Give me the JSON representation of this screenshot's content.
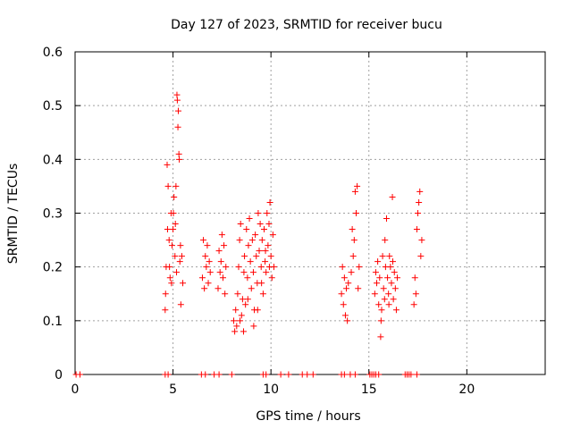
{
  "chart_data": {
    "type": "scatter",
    "title": "Day 127 of 2023, SRMTID for receiver bucu",
    "xlabel": "GPS time / hours",
    "ylabel": "SRMTID / TECUs",
    "xlim": [
      0,
      24
    ],
    "ylim": [
      0,
      0.6
    ],
    "xticks": [
      0,
      5,
      10,
      15,
      20
    ],
    "yticks": [
      0,
      0.1,
      0.2,
      0.3,
      0.4,
      0.5,
      0.6
    ],
    "xtick_labels": [
      "0",
      "5",
      "10",
      "15",
      "20"
    ],
    "ytick_labels": [
      "0",
      "0.1",
      "0.2",
      "0.3",
      "0.4",
      "0.5",
      "0.6"
    ],
    "grid": true,
    "marker": "+",
    "series": [
      {
        "name": "SRMTID",
        "color": "#ff0000",
        "points": [
          [
            0.05,
            0
          ],
          [
            0.25,
            0
          ],
          [
            4.6,
            0
          ],
          [
            4.75,
            0
          ],
          [
            6.45,
            0
          ],
          [
            6.65,
            0
          ],
          [
            7.1,
            0
          ],
          [
            7.35,
            0
          ],
          [
            8.0,
            0
          ],
          [
            9.6,
            0
          ],
          [
            9.75,
            0
          ],
          [
            10.5,
            0
          ],
          [
            10.9,
            0
          ],
          [
            11.6,
            0
          ],
          [
            11.85,
            0
          ],
          [
            12.15,
            0
          ],
          [
            13.6,
            0
          ],
          [
            13.75,
            0
          ],
          [
            14.05,
            0
          ],
          [
            14.3,
            0
          ],
          [
            15.05,
            0
          ],
          [
            15.15,
            0
          ],
          [
            15.25,
            0
          ],
          [
            15.35,
            0
          ],
          [
            15.5,
            0
          ],
          [
            16.85,
            0
          ],
          [
            16.95,
            0
          ],
          [
            17.05,
            0
          ],
          [
            17.15,
            0
          ],
          [
            17.45,
            0
          ],
          [
            4.6,
            0.12
          ],
          [
            4.65,
            0.2
          ],
          [
            4.7,
            0.39
          ],
          [
            4.75,
            0.35
          ],
          [
            4.8,
            0.25
          ],
          [
            4.85,
            0.18
          ],
          [
            4.9,
            0.3
          ],
          [
            4.95,
            0.24
          ],
          [
            5.0,
            0.27
          ],
          [
            5.05,
            0.33
          ],
          [
            5.1,
            0.22
          ],
          [
            5.15,
            0.35
          ],
          [
            5.2,
            0.52
          ],
          [
            5.22,
            0.51
          ],
          [
            5.25,
            0.46
          ],
          [
            5.27,
            0.49
          ],
          [
            5.3,
            0.41
          ],
          [
            5.32,
            0.4
          ],
          [
            5.35,
            0.21
          ],
          [
            5.4,
            0.13
          ],
          [
            5.45,
            0.22
          ],
          [
            5.5,
            0.17
          ],
          [
            4.62,
            0.15
          ],
          [
            4.72,
            0.27
          ],
          [
            4.82,
            0.2
          ],
          [
            4.92,
            0.17
          ],
          [
            5.02,
            0.3
          ],
          [
            5.12,
            0.28
          ],
          [
            5.18,
            0.19
          ],
          [
            5.38,
            0.24
          ],
          [
            6.5,
            0.18
          ],
          [
            6.55,
            0.25
          ],
          [
            6.6,
            0.16
          ],
          [
            6.65,
            0.22
          ],
          [
            6.7,
            0.2
          ],
          [
            6.75,
            0.24
          ],
          [
            6.8,
            0.17
          ],
          [
            6.85,
            0.21
          ],
          [
            6.9,
            0.19
          ],
          [
            7.3,
            0.16
          ],
          [
            7.35,
            0.23
          ],
          [
            7.4,
            0.19
          ],
          [
            7.45,
            0.21
          ],
          [
            7.5,
            0.26
          ],
          [
            7.55,
            0.18
          ],
          [
            7.6,
            0.24
          ],
          [
            7.65,
            0.15
          ],
          [
            7.7,
            0.2
          ],
          [
            8.1,
            0.1
          ],
          [
            8.15,
            0.08
          ],
          [
            8.2,
            0.12
          ],
          [
            8.25,
            0.09
          ],
          [
            8.3,
            0.15
          ],
          [
            8.35,
            0.2
          ],
          [
            8.4,
            0.25
          ],
          [
            8.45,
            0.28
          ],
          [
            8.5,
            0.11
          ],
          [
            8.55,
            0.14
          ],
          [
            8.6,
            0.08
          ],
          [
            8.65,
            0.22
          ],
          [
            8.7,
            0.13
          ],
          [
            8.75,
            0.27
          ],
          [
            8.8,
            0.18
          ],
          [
            8.85,
            0.24
          ],
          [
            8.9,
            0.29
          ],
          [
            8.95,
            0.21
          ],
          [
            9.0,
            0.16
          ],
          [
            9.05,
            0.25
          ],
          [
            9.1,
            0.19
          ],
          [
            9.15,
            0.12
          ],
          [
            9.2,
            0.26
          ],
          [
            9.25,
            0.22
          ],
          [
            9.3,
            0.17
          ],
          [
            9.35,
            0.3
          ],
          [
            9.4,
            0.23
          ],
          [
            9.45,
            0.28
          ],
          [
            9.5,
            0.2
          ],
          [
            9.55,
            0.25
          ],
          [
            9.6,
            0.15
          ],
          [
            9.65,
            0.27
          ],
          [
            9.7,
            0.21
          ],
          [
            9.75,
            0.19
          ],
          [
            9.8,
            0.3
          ],
          [
            9.85,
            0.24
          ],
          [
            9.9,
            0.28
          ],
          [
            9.95,
            0.32
          ],
          [
            10.0,
            0.22
          ],
          [
            10.05,
            0.18
          ],
          [
            10.1,
            0.26
          ],
          [
            10.15,
            0.2
          ],
          [
            8.42,
            0.1
          ],
          [
            8.62,
            0.19
          ],
          [
            8.82,
            0.14
          ],
          [
            9.12,
            0.09
          ],
          [
            9.32,
            0.12
          ],
          [
            9.52,
            0.17
          ],
          [
            9.72,
            0.23
          ],
          [
            9.92,
            0.2
          ],
          [
            13.6,
            0.15
          ],
          [
            13.65,
            0.2
          ],
          [
            13.7,
            0.13
          ],
          [
            13.75,
            0.18
          ],
          [
            13.8,
            0.11
          ],
          [
            13.85,
            0.16
          ],
          [
            13.9,
            0.1
          ],
          [
            13.95,
            0.17
          ],
          [
            14.1,
            0.19
          ],
          [
            14.15,
            0.27
          ],
          [
            14.2,
            0.22
          ],
          [
            14.25,
            0.25
          ],
          [
            14.3,
            0.34
          ],
          [
            14.35,
            0.3
          ],
          [
            14.4,
            0.35
          ],
          [
            14.45,
            0.16
          ],
          [
            14.5,
            0.2
          ],
          [
            15.3,
            0.15
          ],
          [
            15.35,
            0.19
          ],
          [
            15.4,
            0.17
          ],
          [
            15.45,
            0.21
          ],
          [
            15.5,
            0.13
          ],
          [
            15.55,
            0.18
          ],
          [
            15.6,
            0.07
          ],
          [
            15.65,
            0.12
          ],
          [
            15.7,
            0.22
          ],
          [
            15.75,
            0.16
          ],
          [
            15.8,
            0.14
          ],
          [
            15.85,
            0.2
          ],
          [
            15.9,
            0.29
          ],
          [
            15.95,
            0.18
          ],
          [
            16.0,
            0.15
          ],
          [
            16.05,
            0.22
          ],
          [
            16.1,
            0.2
          ],
          [
            16.15,
            0.17
          ],
          [
            16.2,
            0.33
          ],
          [
            16.25,
            0.14
          ],
          [
            16.3,
            0.19
          ],
          [
            16.35,
            0.16
          ],
          [
            16.4,
            0.12
          ],
          [
            16.45,
            0.18
          ],
          [
            15.62,
            0.1
          ],
          [
            15.82,
            0.25
          ],
          [
            16.02,
            0.13
          ],
          [
            16.22,
            0.21
          ],
          [
            17.3,
            0.13
          ],
          [
            17.35,
            0.18
          ],
          [
            17.4,
            0.15
          ],
          [
            17.45,
            0.27
          ],
          [
            17.5,
            0.3
          ],
          [
            17.55,
            0.32
          ],
          [
            17.6,
            0.34
          ],
          [
            17.65,
            0.22
          ],
          [
            17.7,
            0.25
          ]
        ]
      }
    ]
  }
}
